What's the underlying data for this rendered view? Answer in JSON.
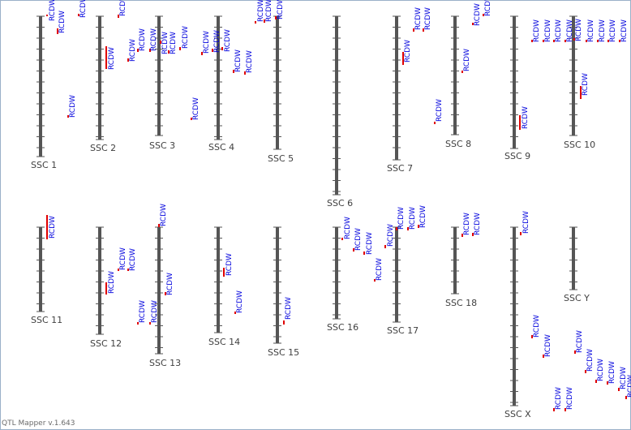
{
  "app": {
    "footer": "QTL Mapper v.1.643"
  },
  "colors": {
    "chromosome": "#555555",
    "tick": "#555555",
    "qtl_bar": "#e00000",
    "qtl_text": "#0000dd",
    "label": "#404040"
  },
  "chromosomes": [
    {
      "label": "SSC 1"
    },
    {
      "label": "SSC 2"
    },
    {
      "label": "SSC 3"
    },
    {
      "label": "SSC 4"
    },
    {
      "label": "SSC 5"
    },
    {
      "label": "SSC 6"
    },
    {
      "label": "SSC 7"
    },
    {
      "label": "SSC 8"
    },
    {
      "label": "SSC 9"
    },
    {
      "label": "SSC 10"
    },
    {
      "label": "SSC 11"
    },
    {
      "label": "SSC 12"
    },
    {
      "label": "SSC 13"
    },
    {
      "label": "SSC 14"
    },
    {
      "label": "SSC 15"
    },
    {
      "label": "SSC 16"
    },
    {
      "label": "SSC 17"
    },
    {
      "label": "SSC 18"
    },
    {
      "label": "SSC X"
    },
    {
      "label": "SSC Y"
    }
  ],
  "qtl_trait": "RCDW"
}
